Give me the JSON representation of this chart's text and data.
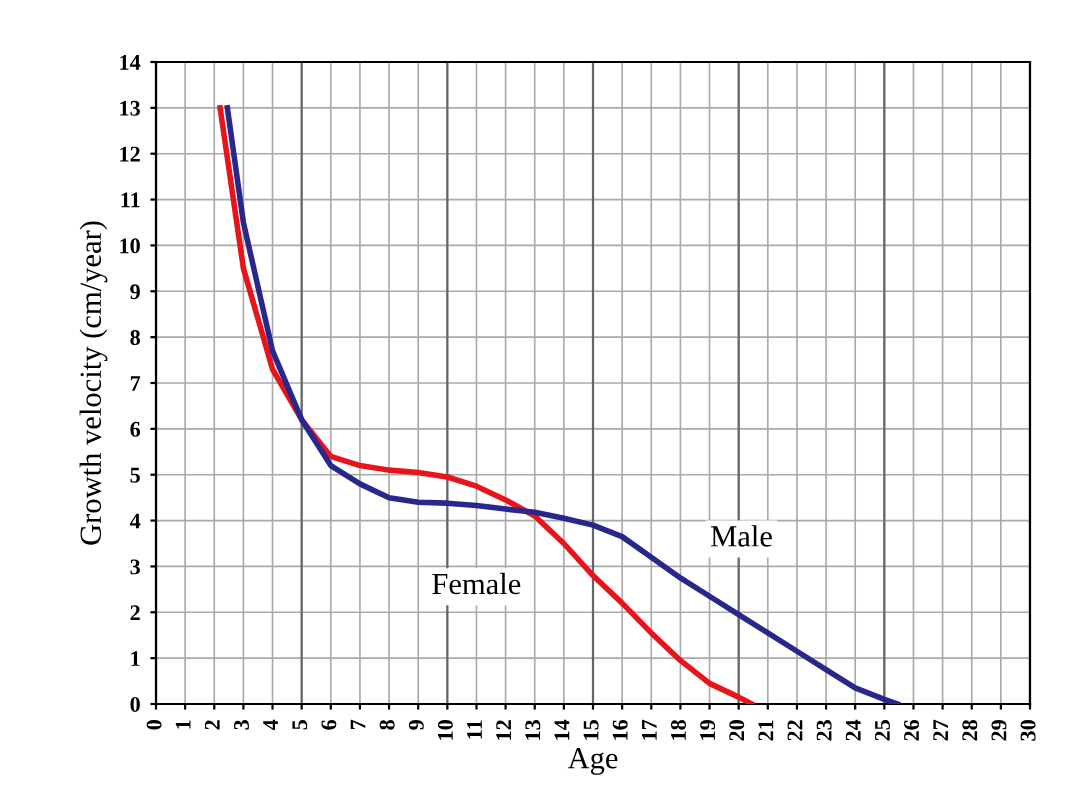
{
  "chart_data": {
    "type": "line",
    "xlabel": "Age",
    "ylabel": "Growth velocity (cm/year)",
    "xlim": [
      0,
      30
    ],
    "ylim": [
      0,
      14
    ],
    "xticks": [
      0,
      1,
      2,
      3,
      4,
      5,
      6,
      7,
      8,
      9,
      10,
      11,
      12,
      13,
      14,
      15,
      16,
      17,
      18,
      19,
      20,
      21,
      22,
      23,
      24,
      25,
      26,
      27,
      28,
      29,
      30
    ],
    "yticks": [
      0,
      1,
      2,
      3,
      4,
      5,
      6,
      7,
      8,
      9,
      10,
      11,
      12,
      13,
      14
    ],
    "grid": true,
    "marker": "none",
    "line_style": "solid",
    "series": [
      {
        "name": "Female",
        "color": "#e8141c",
        "x": [
          2.2,
          3,
          4,
          5,
          6,
          7,
          8,
          9,
          10,
          11,
          12,
          13,
          14,
          15,
          16,
          17,
          18,
          19,
          20,
          20.45
        ],
        "values": [
          13,
          9.5,
          7.3,
          6.2,
          5.4,
          5.2,
          5.1,
          5.05,
          4.95,
          4.75,
          4.45,
          4.1,
          3.5,
          2.8,
          2.2,
          1.55,
          0.95,
          0.45,
          0.15,
          0
        ]
      },
      {
        "name": "Male",
        "color": "#28288c",
        "x": [
          2.45,
          3,
          4,
          5,
          6,
          7,
          8,
          9,
          10,
          11,
          12,
          13,
          14,
          15,
          16,
          17,
          18,
          19,
          20,
          21,
          22,
          23,
          24,
          25,
          25.45
        ],
        "values": [
          13,
          10.5,
          7.7,
          6.2,
          5.2,
          4.8,
          4.5,
          4.4,
          4.38,
          4.33,
          4.25,
          4.18,
          4.05,
          3.9,
          3.65,
          3.2,
          2.75,
          2.35,
          1.95,
          1.55,
          1.15,
          0.75,
          0.35,
          0.1,
          0
        ]
      }
    ]
  }
}
